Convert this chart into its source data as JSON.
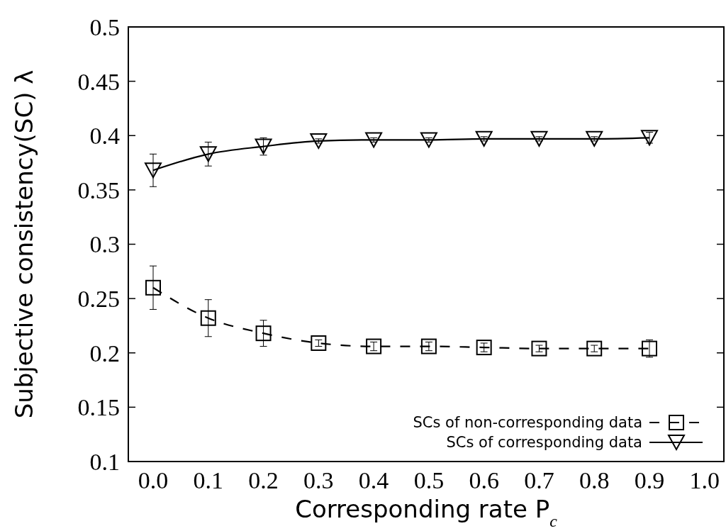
{
  "chart_data": {
    "type": "line",
    "xlabel": "Corresponding rate P$_{c}$",
    "ylabel": "Subjective consistency(SC) λ",
    "x": [
      0.0,
      0.1,
      0.2,
      0.3,
      0.4,
      0.5,
      0.6,
      0.7,
      0.8,
      0.9
    ],
    "series": [
      {
        "name": "SCs of non-corresponding data",
        "color": "#000000",
        "marker": "square",
        "line_style": "dashed",
        "values": [
          0.26,
          0.232,
          0.218,
          0.209,
          0.206,
          0.206,
          0.205,
          0.204,
          0.204,
          0.204
        ],
        "errors": [
          0.02,
          0.017,
          0.012,
          0.003,
          0.004,
          0.004,
          0.004,
          0.003,
          0.003,
          0.008
        ]
      },
      {
        "name": "SCs of corresponding data",
        "color": "#000000",
        "marker": "triangle",
        "line_style": "solid",
        "values": [
          0.368,
          0.383,
          0.39,
          0.395,
          0.396,
          0.396,
          0.397,
          0.397,
          0.397,
          0.398
        ],
        "errors": [
          0.015,
          0.011,
          0.008,
          0.002,
          0.002,
          0.002,
          0.002,
          0.002,
          0.002,
          0.005
        ]
      }
    ],
    "xlim": [
      -0.045,
      1.035
    ],
    "ylim": [
      0.1,
      0.5
    ],
    "xticks": [
      {
        "value": 0,
        "label": "0.0"
      },
      0.1,
      0.2,
      0.3,
      0.4,
      0.5,
      0.6,
      0.7,
      0.8,
      0.9,
      {
        "value": 1,
        "label": "1.0"
      }
    ],
    "yticks": [
      0.1,
      0.15,
      0.2,
      0.25,
      0.3,
      0.35,
      0.4,
      0.45,
      0.5
    ],
    "legend": "bottom right",
    "grid": false
  }
}
